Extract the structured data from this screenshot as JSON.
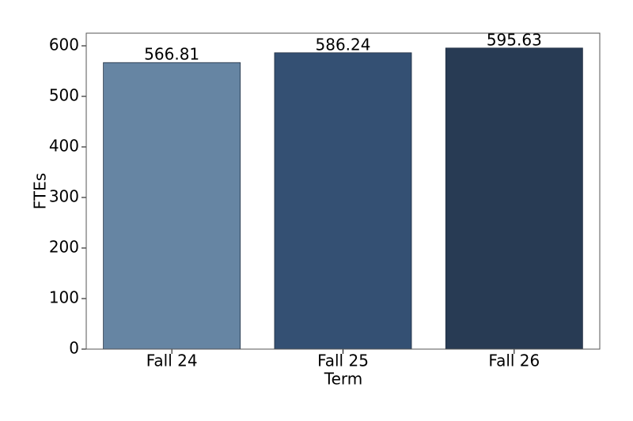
{
  "chart_data": {
    "type": "bar",
    "x_label": "Term",
    "y_label": "FTEs",
    "categories": [
      "Fall 24",
      "Fall 25",
      "Fall 26"
    ],
    "values": [
      566.81,
      586.24,
      595.63
    ],
    "colors": [
      "#6685a3",
      "#345073",
      "#283b54"
    ],
    "ylim": [
      0,
      625
    ],
    "yticks": [
      0,
      100,
      200,
      300,
      400,
      500,
      600
    ],
    "grid": false
  }
}
